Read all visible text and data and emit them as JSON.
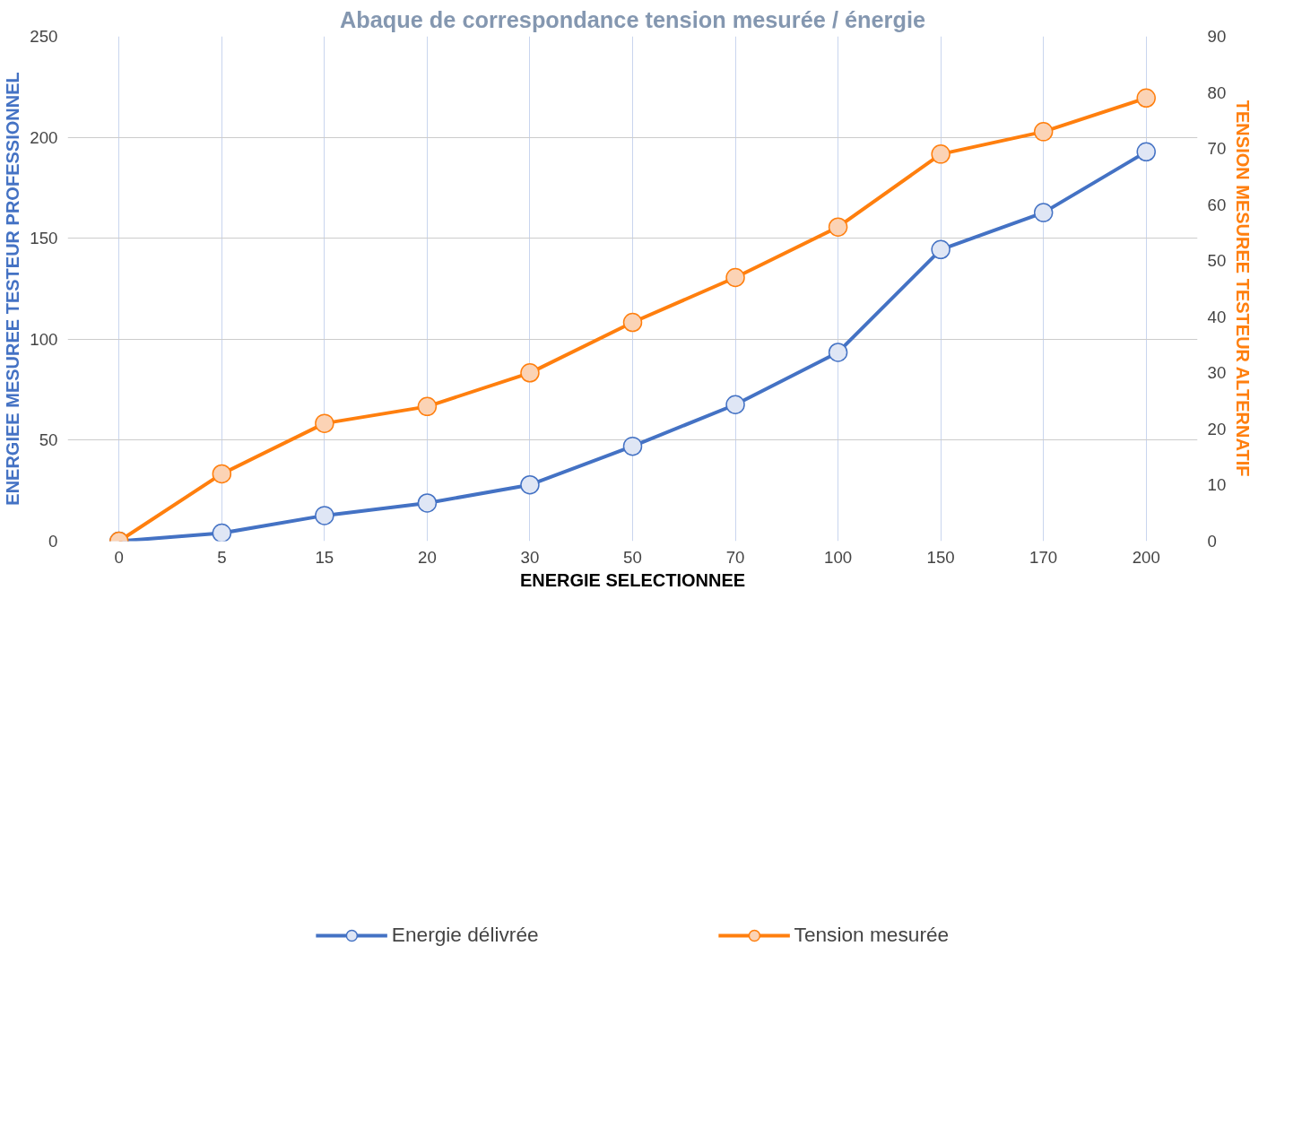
{
  "chart_data": {
    "type": "line",
    "title": "Abaque de correspondance tension mesurée / énergie",
    "xlabel": "ENERGIE SELECTIONNEE",
    "ylabel": "ENERGIEE MESUREE TESTEUR PROFESSIONNEL",
    "y2label": "TENSION MESUREE TESTEUR ALTERNATIF",
    "categories": [
      "0",
      "5",
      "15",
      "20",
      "30",
      "50",
      "70",
      "100",
      "150",
      "170",
      "200"
    ],
    "series": [
      {
        "name": "Energie délivrée",
        "color": "#4472c4",
        "values": [
          0,
          4,
          12.7,
          18.9,
          27.9,
          47,
          67.6,
          93.5,
          144.4,
          162.7,
          192.8
        ]
      },
      {
        "name": "Tension mesurée",
        "color": "#ff7f0e",
        "axis": "y2",
        "values": [
          0,
          12,
          21,
          24,
          30,
          39,
          47,
          56,
          69,
          73,
          79
        ]
      }
    ],
    "ylim": [
      0,
      250
    ],
    "yticks": [
      0,
      50,
      100,
      150,
      200,
      250
    ],
    "y2lim": [
      0,
      90
    ],
    "y2ticks": [
      0,
      10,
      20,
      30,
      40,
      50,
      60,
      70,
      80,
      90
    ],
    "grid": true,
    "legend": "bottom",
    "marker": "circle",
    "line_style": "solid"
  }
}
